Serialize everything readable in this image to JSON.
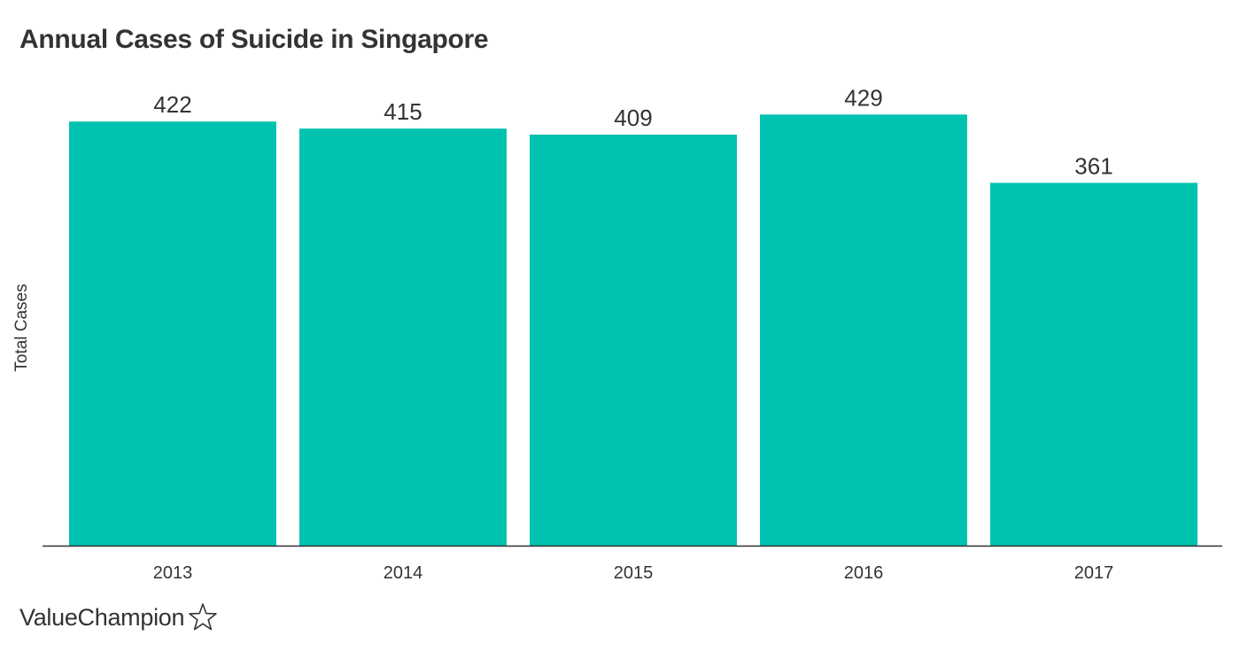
{
  "chart_data": {
    "type": "bar",
    "title": "Annual Cases of Suicide in Singapore",
    "xlabel": "",
    "ylabel": "Total Cases",
    "categories": [
      "2013",
      "2014",
      "2015",
      "2016",
      "2017"
    ],
    "values": [
      422,
      415,
      409,
      429,
      361
    ],
    "ylim": [
      0,
      470
    ],
    "grid": false,
    "legend": "none",
    "bar_color": "#00c2b0",
    "text_color": "#333333",
    "axis_color": "#333333"
  },
  "branding": {
    "logo_text": "ValueChampion",
    "logo_icon": "star-outline-icon"
  }
}
